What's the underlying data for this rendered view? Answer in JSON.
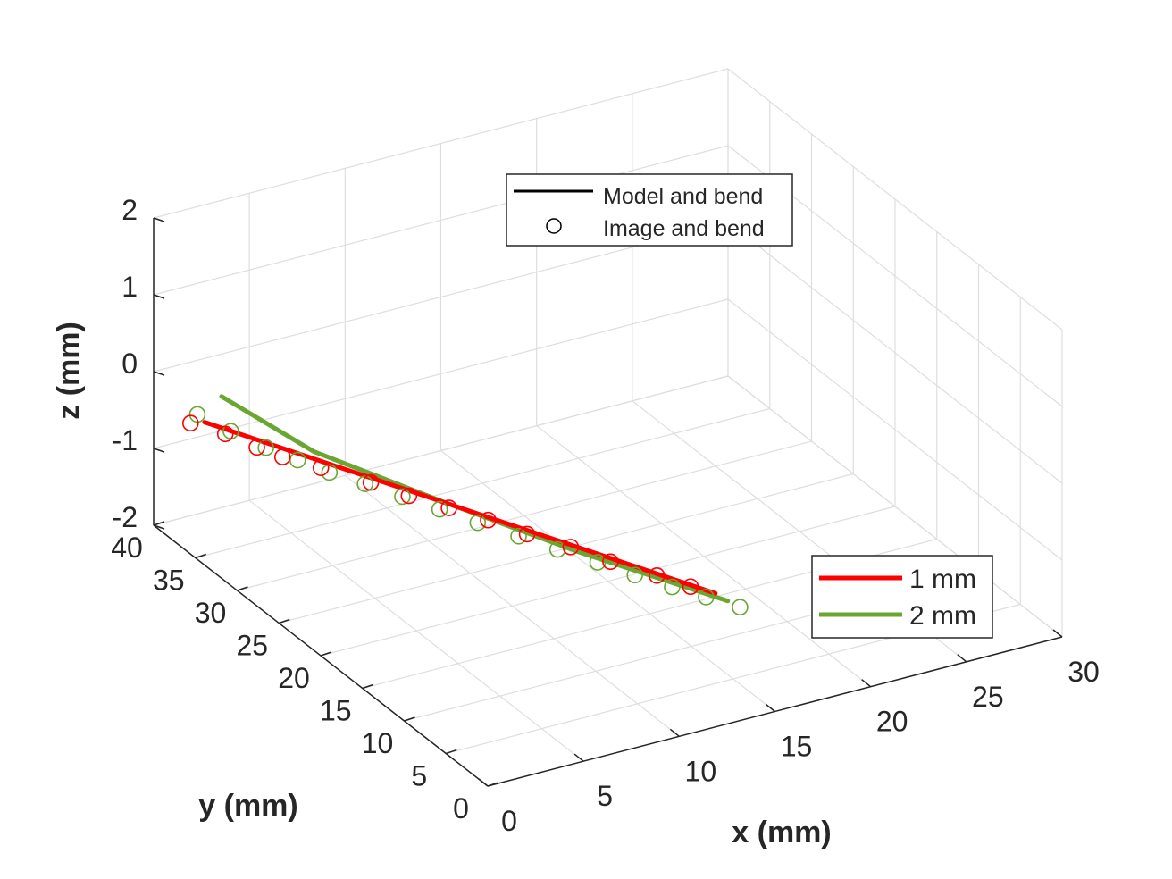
{
  "chart_data": {
    "type": "line3d",
    "xlabel": "x (mm)",
    "ylabel": "y (mm)",
    "zlabel": "z (mm)",
    "xlim": [
      0,
      30
    ],
    "ylim": [
      0,
      40
    ],
    "zlim": [
      -2,
      2
    ],
    "xticks": [
      "0",
      "5",
      "10",
      "15",
      "20",
      "25",
      "30"
    ],
    "yticks": [
      "0",
      "5",
      "10",
      "15",
      "20",
      "25",
      "30",
      "35",
      "40"
    ],
    "zticks": [
      "-2",
      "-1",
      "0",
      "1",
      "2"
    ],
    "grid": true,
    "legend_style": {
      "position": "top-center",
      "entries": [
        "Model and bend",
        "Image and bend"
      ]
    },
    "legend_series": {
      "position": "bottom-right",
      "entries": [
        "1 mm",
        "2 mm"
      ]
    },
    "colors": {
      "red": "#ff0000",
      "green": "#6aa632",
      "axis": "#262626",
      "grid": "#dedede"
    },
    "series": [
      {
        "name": "1 mm",
        "color": "#ff0000",
        "model_line": {
          "x": [
            1.0,
            13.2
          ],
          "y": [
            36.2,
            3.0
          ],
          "z": [
            -0.4,
            -0.6
          ]
        },
        "image_points": {
          "x": [
            0.4,
            1.3,
            1.9,
            2.5,
            3.5,
            4.8,
            5.7,
            6.7,
            7.7,
            8.6,
            9.7,
            10.6,
            11.8,
            12.6
          ],
          "y": [
            36.5,
            34.4,
            32.0,
            30.3,
            28.0,
            25.0,
            22.5,
            20.0,
            17.6,
            15.0,
            12.3,
            9.6,
            6.8,
            4.6
          ],
          "z": [
            -0.4,
            -0.42,
            -0.43,
            -0.45,
            -0.46,
            -0.48,
            -0.5,
            -0.51,
            -0.53,
            -0.55,
            -0.56,
            -0.58,
            -0.6,
            -0.61
          ]
        }
      },
      {
        "name": "2 mm",
        "color": "#6aa632",
        "model_line": {
          "x": [
            1.8,
            4.0,
            7.0,
            10.0,
            13.5
          ],
          "y": [
            36.0,
            30.0,
            21.0,
            12.0,
            2.2
          ],
          "z": [
            -0.1,
            -0.45,
            -0.55,
            -0.62,
            -0.65
          ]
        },
        "image_points": {
          "x": [
            0.8,
            1.5,
            2.2,
            2.9,
            3.6,
            4.5,
            5.4,
            6.3,
            7.2,
            8.2,
            9.1,
            10.1,
            11.0,
            11.9,
            12.8,
            13.7
          ],
          "y": [
            36.6,
            34.2,
            31.6,
            29.4,
            27.2,
            25.0,
            22.6,
            20.2,
            17.7,
            15.1,
            12.5,
            10.0,
            7.6,
            5.2,
            3.2,
            1.2
          ],
          "z": [
            -0.32,
            -0.38,
            -0.42,
            -0.44,
            -0.46,
            -0.48,
            -0.5,
            -0.52,
            -0.54,
            -0.56,
            -0.57,
            -0.59,
            -0.61,
            -0.62,
            -0.64,
            -0.66
          ]
        }
      }
    ]
  }
}
